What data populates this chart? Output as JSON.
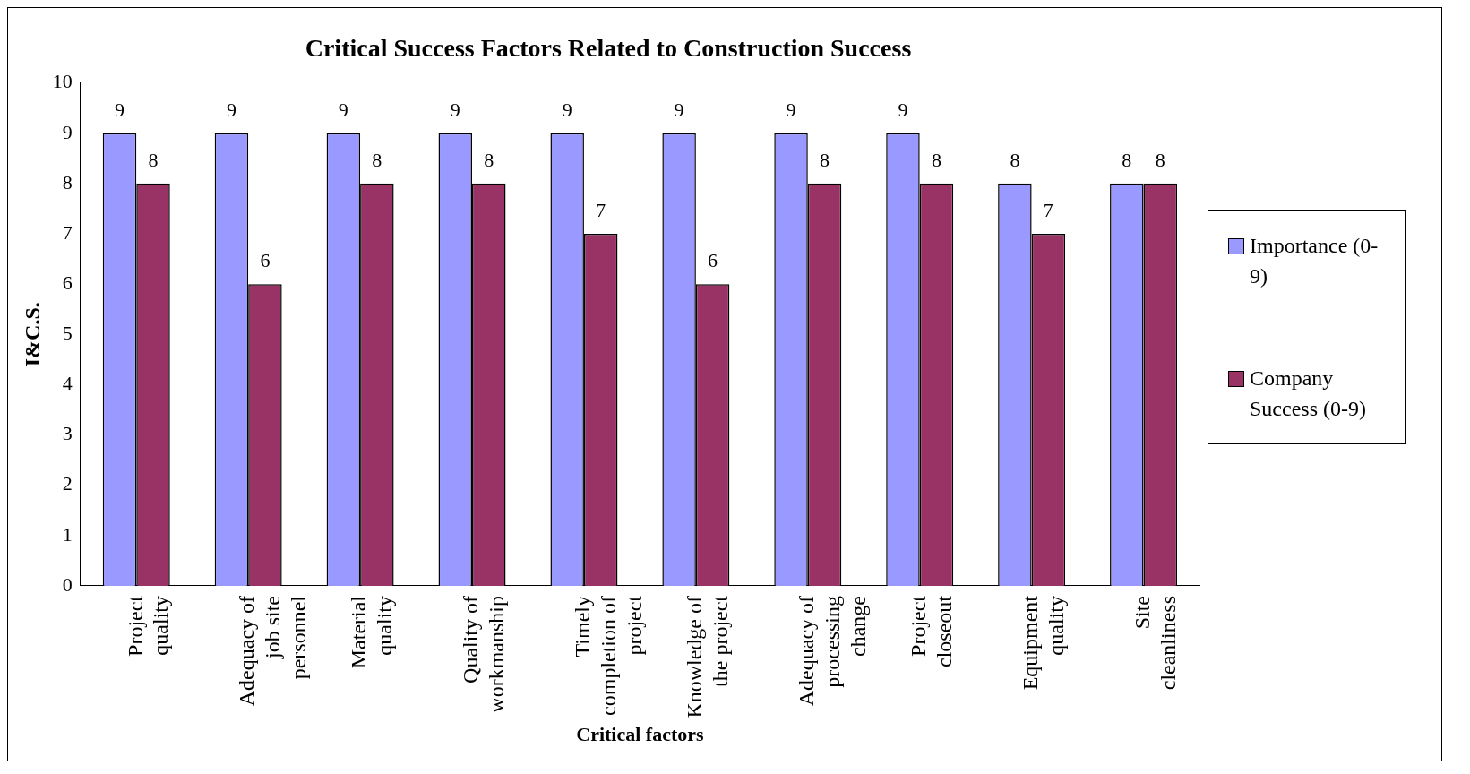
{
  "chart_data": {
    "type": "bar",
    "title": "Critical Success Factors Related to Construction Success",
    "xlabel": "Critical factors",
    "ylabel": "I&C.S.",
    "categories": [
      "Project quality",
      "Adequacy of job site personnel",
      "Material quality",
      "Quality of workmanship",
      "Timely completion of project",
      "Knowledge of the project",
      "Adequacy of processing change",
      "Project closeout",
      "Equipment quality",
      "Site cleanliness"
    ],
    "series": [
      {
        "name": "Importance (0-9)",
        "color": "#9999ff",
        "values": [
          9,
          9,
          9,
          9,
          9,
          9,
          9,
          9,
          8,
          8
        ]
      },
      {
        "name": "Company Success (0-9)",
        "color": "#993366",
        "values": [
          8,
          6,
          8,
          8,
          7,
          6,
          8,
          8,
          7,
          8
        ]
      }
    ],
    "ylim": [
      0,
      10
    ],
    "yticks": [
      0,
      1,
      2,
      3,
      4,
      5,
      6,
      7,
      8,
      9,
      10
    ],
    "grid": false,
    "legend": "right",
    "data_labels": true
  }
}
